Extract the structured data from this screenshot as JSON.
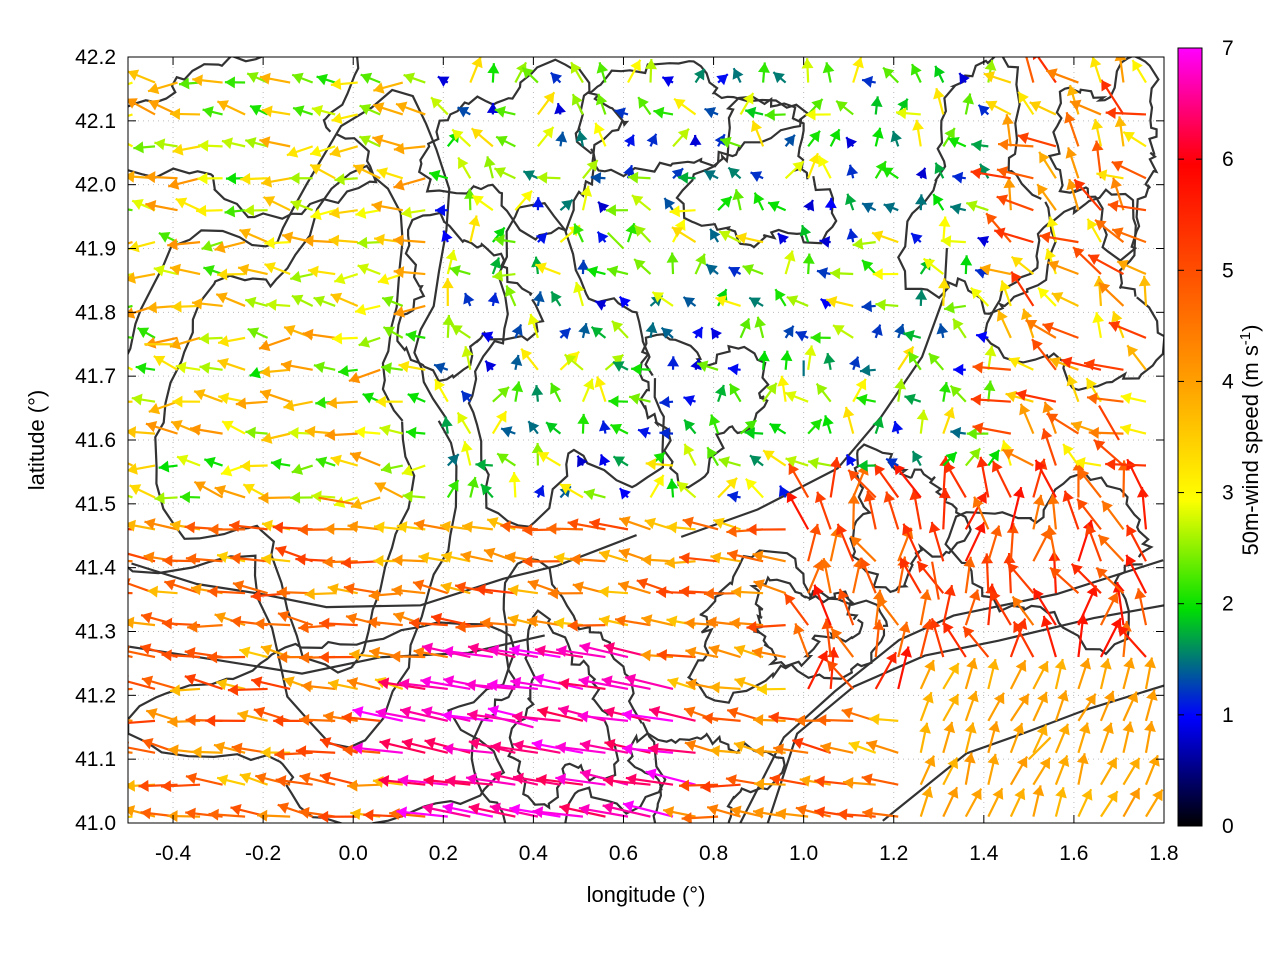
{
  "chart_data": {
    "type": "vector-field",
    "xlabel": "longitude (°)",
    "ylabel": "latitude (°)",
    "xlim": [
      -0.5,
      1.8
    ],
    "ylim": [
      41.0,
      42.2
    ],
    "xticks": [
      "-0.4",
      "-0.2",
      "0.0",
      "0.2",
      "0.4",
      "0.6",
      "0.8",
      "1.0",
      "1.2",
      "1.4",
      "1.6",
      "1.8"
    ],
    "yticks": [
      "41.0",
      "41.1",
      "41.2",
      "41.3",
      "41.4",
      "41.5",
      "41.6",
      "41.7",
      "41.8",
      "41.9",
      "42.0",
      "42.1",
      "42.2"
    ],
    "grid": true,
    "colorbar": {
      "label_text": "50m-wind speed (m s",
      "label_sup": "-1",
      "label_close": ")",
      "range": [
        0,
        7
      ],
      "ticks": [
        "0",
        "1",
        "2",
        "3",
        "4",
        "5",
        "6",
        "7"
      ],
      "palette": [
        "#000000",
        "#0000ff",
        "#00ff00",
        "#ffff00",
        "#ff8c00",
        "#ff0000",
        "#ff00ff"
      ]
    },
    "arrows": {
      "grid_spacing_deg": [
        0.05,
        0.05
      ],
      "sample_vectors": [
        {
          "lon": -0.4,
          "lat": 41.75,
          "speed": 3.5,
          "dir_deg": 180
        },
        {
          "lon": 0.0,
          "lat": 41.5,
          "speed": 4.5,
          "dir_deg": 170
        },
        {
          "lon": 0.4,
          "lat": 41.15,
          "speed": 6.8,
          "dir_deg": 165
        },
        {
          "lon": 0.6,
          "lat": 41.9,
          "speed": 2.5,
          "dir_deg": 135
        },
        {
          "lon": 1.0,
          "lat": 41.7,
          "speed": 1.5,
          "dir_deg": 90
        },
        {
          "lon": 1.3,
          "lat": 41.35,
          "speed": 5.0,
          "dir_deg": 100
        },
        {
          "lon": 1.5,
          "lat": 41.1,
          "speed": 3.8,
          "dir_deg": 45
        },
        {
          "lon": 1.7,
          "lat": 41.6,
          "speed": 5.2,
          "dir_deg": 120
        }
      ]
    },
    "contours": {
      "color": "#333333",
      "description_levels": "terrain elevation isolines"
    }
  }
}
